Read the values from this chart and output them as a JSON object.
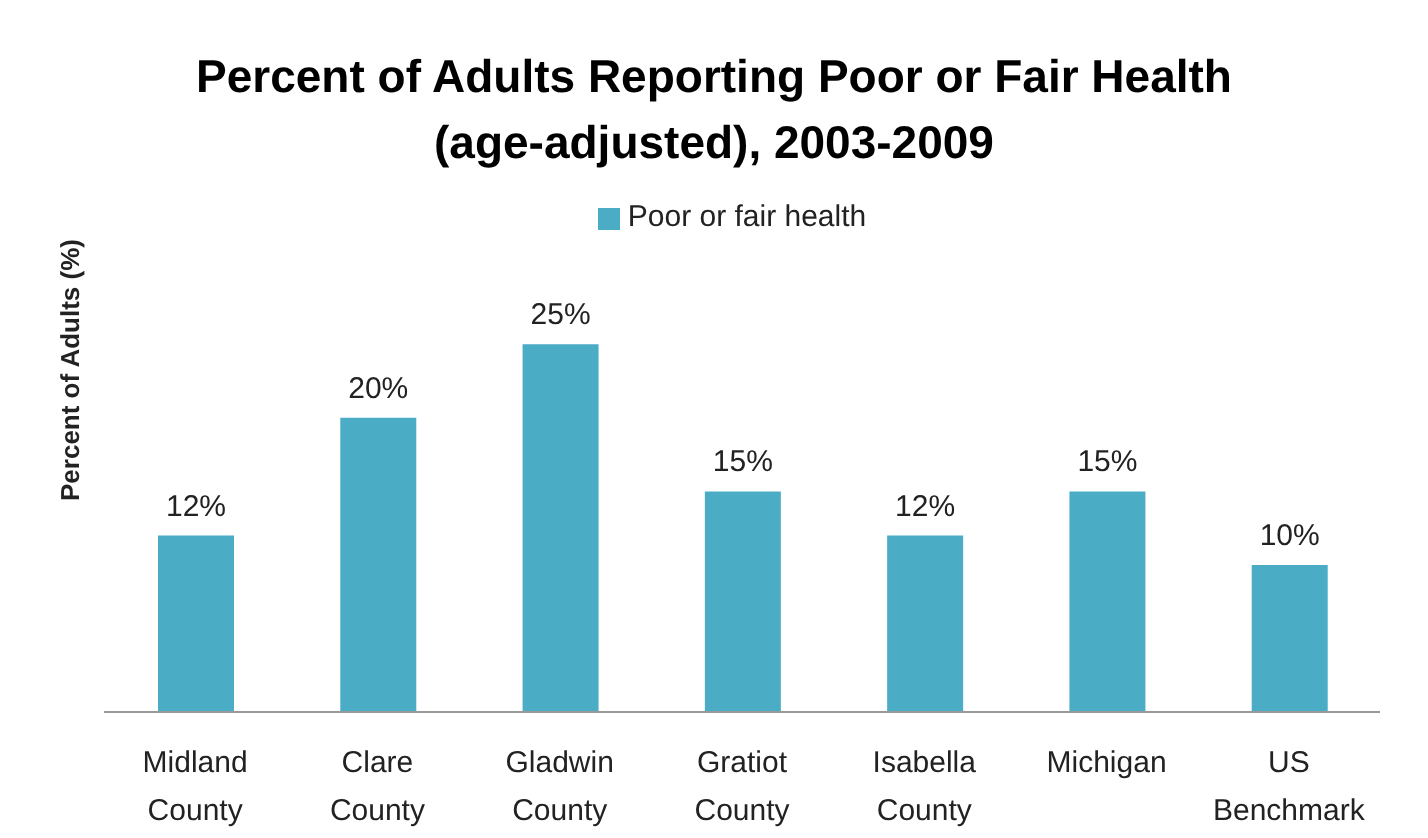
{
  "chart_data": {
    "type": "bar",
    "title": "Percent of Adults Reporting Poor or Fair Health\n(age-adjusted), 2003-2009",
    "ylabel": "Percent of Adults (%)",
    "categories": [
      "Midland County",
      "Clare County",
      "Gladwin County",
      "Gratiot County",
      "Isabella County",
      "Michigan",
      "US Benchmark"
    ],
    "series": [
      {
        "name": "Poor or fair health",
        "color": "#4bacc6",
        "values": [
          12,
          20,
          25,
          15,
          12,
          15,
          10
        ],
        "value_labels": [
          "12%",
          "20%",
          "25%",
          "15%",
          "12%",
          "15%",
          "10%"
        ]
      }
    ],
    "legend": "top",
    "grid": false
  }
}
